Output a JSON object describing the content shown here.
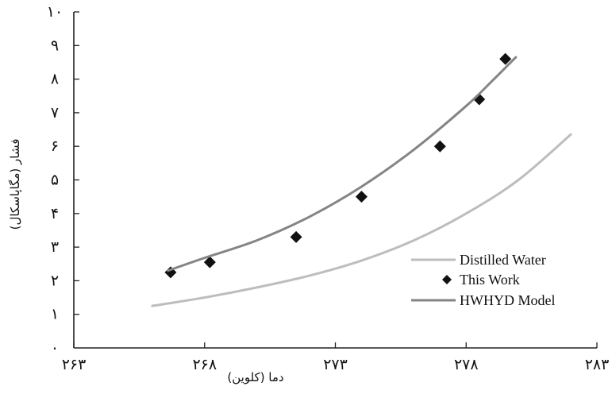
{
  "chart_data": {
    "type": "line",
    "title": "",
    "xlabel": "دما (کلوین)",
    "ylabel": "فشار (مگاپاسکال)",
    "xlim": [
      263,
      283
    ],
    "ylim": [
      0,
      10
    ],
    "x_ticks": [
      263,
      268,
      273,
      278,
      283
    ],
    "x_tick_labels": [
      "۲۶۳",
      "۲۶۸",
      "۲۷۳",
      "۲۷۸",
      "۲۸۳"
    ],
    "y_ticks": [
      0,
      1,
      2,
      3,
      4,
      5,
      6,
      7,
      8,
      9,
      10
    ],
    "y_tick_labels": [
      "۰",
      "۱",
      "۲",
      "۳",
      "۴",
      "۵",
      "۶",
      "۷",
      "۸",
      "۹",
      "۱۰"
    ],
    "grid": false,
    "legend_position": "bottom-right",
    "series": [
      {
        "name": "Distilled Water",
        "kind": "line",
        "color": "#bdbdbd",
        "x": [
          266.0,
          268.0,
          270.0,
          272.0,
          274.0,
          276.0,
          278.0,
          280.0,
          282.0
        ],
        "y": [
          1.25,
          1.5,
          1.8,
          2.15,
          2.6,
          3.2,
          4.0,
          5.0,
          6.35
        ]
      },
      {
        "name": "This Work",
        "kind": "scatter",
        "color": "#111111",
        "x": [
          266.7,
          268.2,
          271.5,
          274.0,
          277.0,
          278.5,
          279.5
        ],
        "y": [
          2.25,
          2.55,
          3.3,
          4.5,
          6.0,
          7.4,
          8.6
        ]
      },
      {
        "name": "HWHYD Model",
        "kind": "line",
        "color": "#858585",
        "x": [
          266.6,
          268.0,
          270.0,
          272.0,
          274.0,
          276.0,
          278.0,
          279.0,
          279.9
        ],
        "y": [
          2.3,
          2.68,
          3.2,
          3.9,
          4.8,
          5.9,
          7.2,
          7.95,
          8.65
        ]
      }
    ]
  }
}
